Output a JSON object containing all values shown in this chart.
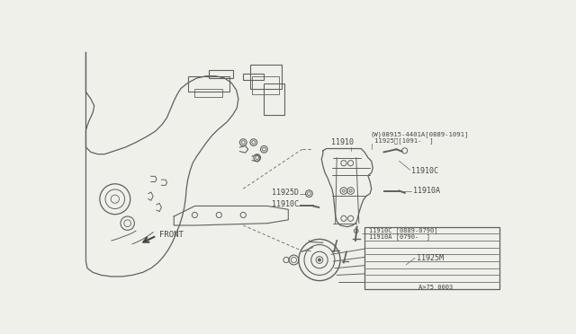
{
  "bg_color": "#f0f0eb",
  "line_color": "#606060",
  "text_color": "#444444",
  "diagram_number": "A>75 0003",
  "labels": {
    "w_bolt": "(W)08915-4401A[0889-1091]",
    "w_bolt2": "11925Ⅱ[1091-  ]",
    "11910": "11910",
    "11910C_tr": "11910C",
    "11910A": "11910A",
    "11925D": "11925D",
    "11910C_l": "11910C",
    "11910C_b": "11910C [0889-0790]",
    "11910A_b": "11910A [0790-  ]",
    "11925M": "11925M",
    "FRONT": "FRONT"
  },
  "font_size": 6.0
}
